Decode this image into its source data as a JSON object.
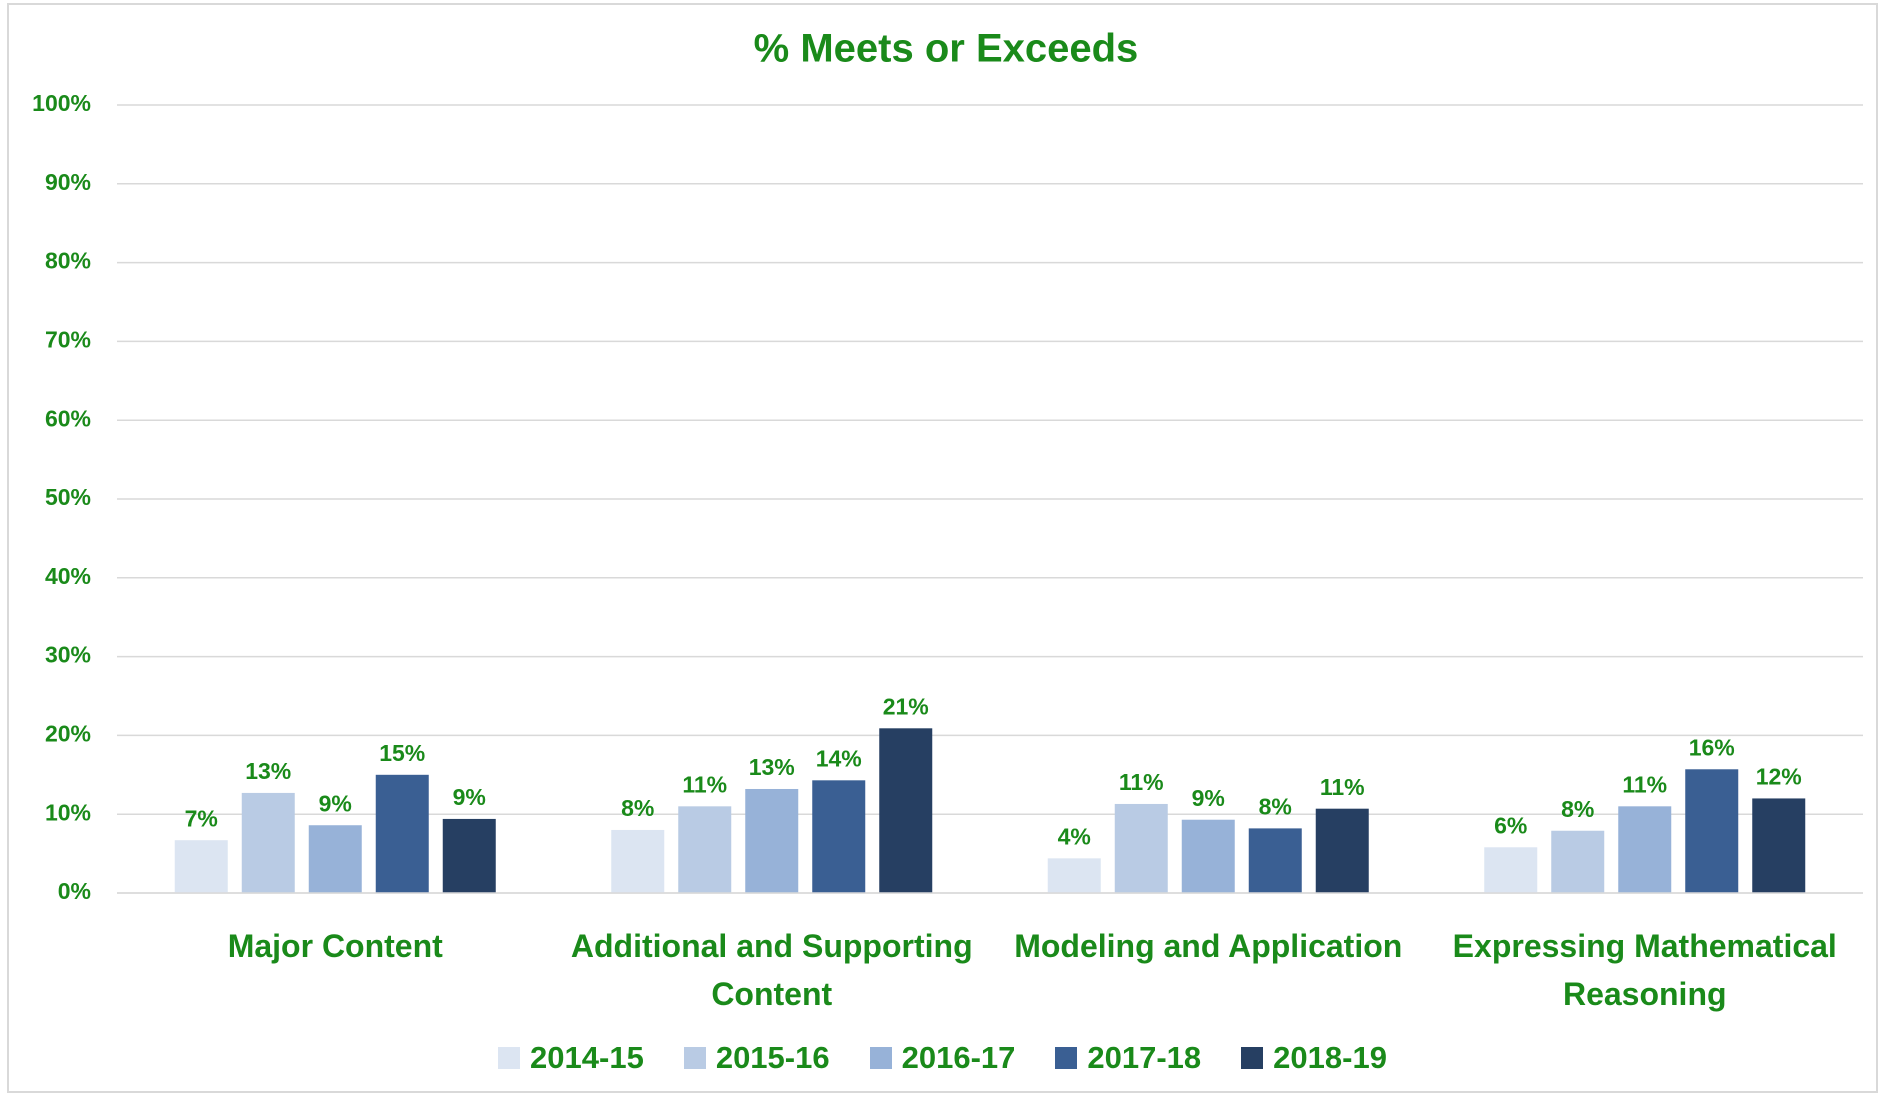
{
  "chart_data": {
    "type": "bar",
    "title": "% Meets or Exceeds",
    "categories": [
      "Major Content",
      "Additional and Supporting Content",
      "Modeling and Application",
      "Expressing Mathematical Reasoning"
    ],
    "series": [
      {
        "name": "2014-15",
        "color": "#dce5f2",
        "values": [
          6.7,
          8.0,
          4.4,
          5.8
        ],
        "value_labels": [
          "7%",
          "8%",
          "4%",
          "6%"
        ]
      },
      {
        "name": "2015-16",
        "color": "#b9cbe4",
        "values": [
          12.7,
          11.0,
          11.3,
          7.9
        ],
        "value_labels": [
          "13%",
          "11%",
          "11%",
          "8%"
        ]
      },
      {
        "name": "2016-17",
        "color": "#97b2d8",
        "values": [
          8.6,
          13.2,
          9.3,
          11.0
        ],
        "value_labels": [
          "9%",
          "13%",
          "9%",
          "11%"
        ]
      },
      {
        "name": "2017-18",
        "color": "#3a5f93",
        "values": [
          15.0,
          14.3,
          8.2,
          15.7
        ],
        "value_labels": [
          "15%",
          "14%",
          "8%",
          "16%"
        ]
      },
      {
        "name": "2018-19",
        "color": "#263f62",
        "values": [
          9.4,
          20.9,
          10.7,
          12.0
        ],
        "value_labels": [
          "9%",
          "21%",
          "11%",
          "12%"
        ]
      }
    ],
    "ylim": [
      0,
      100
    ],
    "yticks": [
      {
        "value": 0,
        "label": "0%"
      },
      {
        "value": 10,
        "label": "10%"
      },
      {
        "value": 20,
        "label": "20%"
      },
      {
        "value": 30,
        "label": "30%"
      },
      {
        "value": 40,
        "label": "40%"
      },
      {
        "value": 50,
        "label": "50%"
      },
      {
        "value": 60,
        "label": "60%"
      },
      {
        "value": 70,
        "label": "70%"
      },
      {
        "value": 80,
        "label": "80%"
      },
      {
        "value": 90,
        "label": "90%"
      },
      {
        "value": 100,
        "label": "100%"
      }
    ],
    "grid": true,
    "legend": "bottom"
  }
}
